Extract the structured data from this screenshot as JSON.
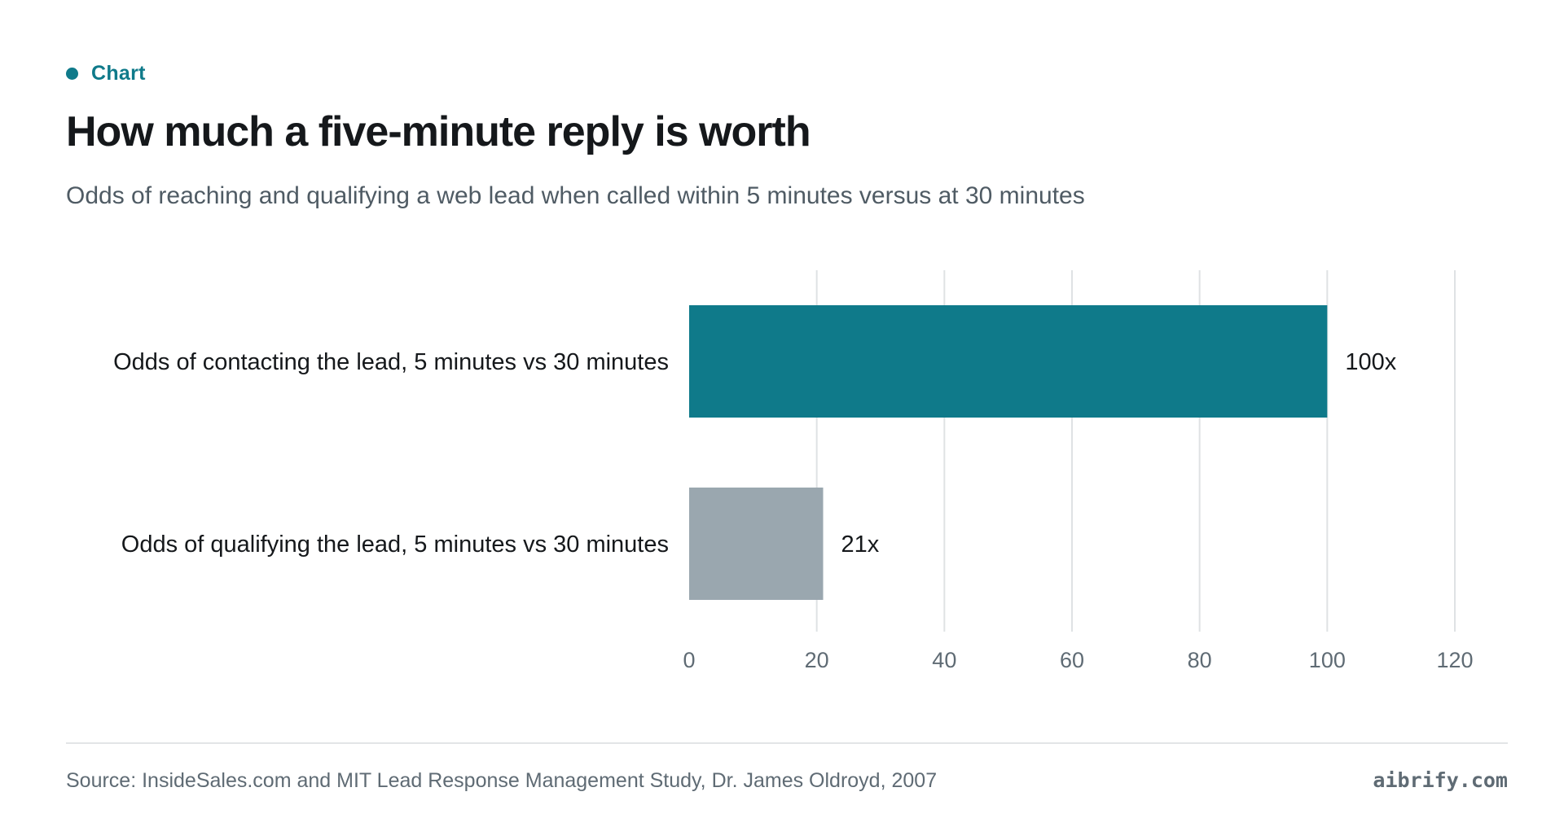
{
  "header": {
    "eyebrow": "Chart",
    "title": "How much a five-minute reply is worth",
    "subtitle": "Odds of reaching and qualifying a web lead when called within 5 minutes versus at 30 minutes"
  },
  "footer": {
    "source": "Source: InsideSales.com and MIT Lead Response Management Study, Dr. James Oldroyd, 2007",
    "brand": "aibrify.com"
  },
  "colors": {
    "accent": "#0f7a8a",
    "secondary_bar": "#9aa7af",
    "gridline": "#dfe2e4"
  },
  "chart_data": {
    "type": "bar",
    "orientation": "horizontal",
    "categories": [
      "Odds of contacting the lead, 5 minutes vs 30 minutes",
      "Odds of qualifying the lead, 5 minutes vs 30 minutes"
    ],
    "values": [
      100,
      21
    ],
    "value_labels": [
      "100x",
      "21x"
    ],
    "bar_colors": [
      "#0f7a8a",
      "#9aa7af"
    ],
    "xlim": [
      0,
      120
    ],
    "xticks": [
      0,
      20,
      40,
      60,
      80,
      100,
      120
    ],
    "grid": true
  }
}
